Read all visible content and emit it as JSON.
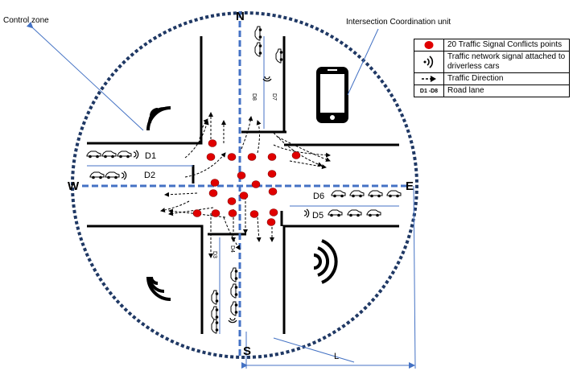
{
  "labels": {
    "control_zone": "Control zone",
    "coordination_unit": "Intersection Coordination unit",
    "north": "N",
    "south": "S",
    "west": "W",
    "east": "E",
    "radius": "L"
  },
  "lanes": {
    "d1": "D1",
    "d2": "D2",
    "d3": "D3",
    "d4": "D4",
    "d5": "D5",
    "d6": "D6",
    "d7": "D7",
    "d8": "D8"
  },
  "legend": [
    {
      "icon": "conflict-point-icon",
      "text": "20 Traffic Signal Conflicts points"
    },
    {
      "icon": "wireless-signal-icon",
      "text": "Traffic network signal attached to driverless cars"
    },
    {
      "icon": "direction-arrow-icon",
      "text": "Traffic Direction"
    },
    {
      "code": "D1 -D8",
      "text": "Road lane"
    }
  ],
  "colors": {
    "zone_circle": "#1f3864",
    "lane_divider": "#4472c4",
    "conflict_point": "#e00000",
    "road_edge": "#000000",
    "pointer_line": "#4472c4"
  }
}
